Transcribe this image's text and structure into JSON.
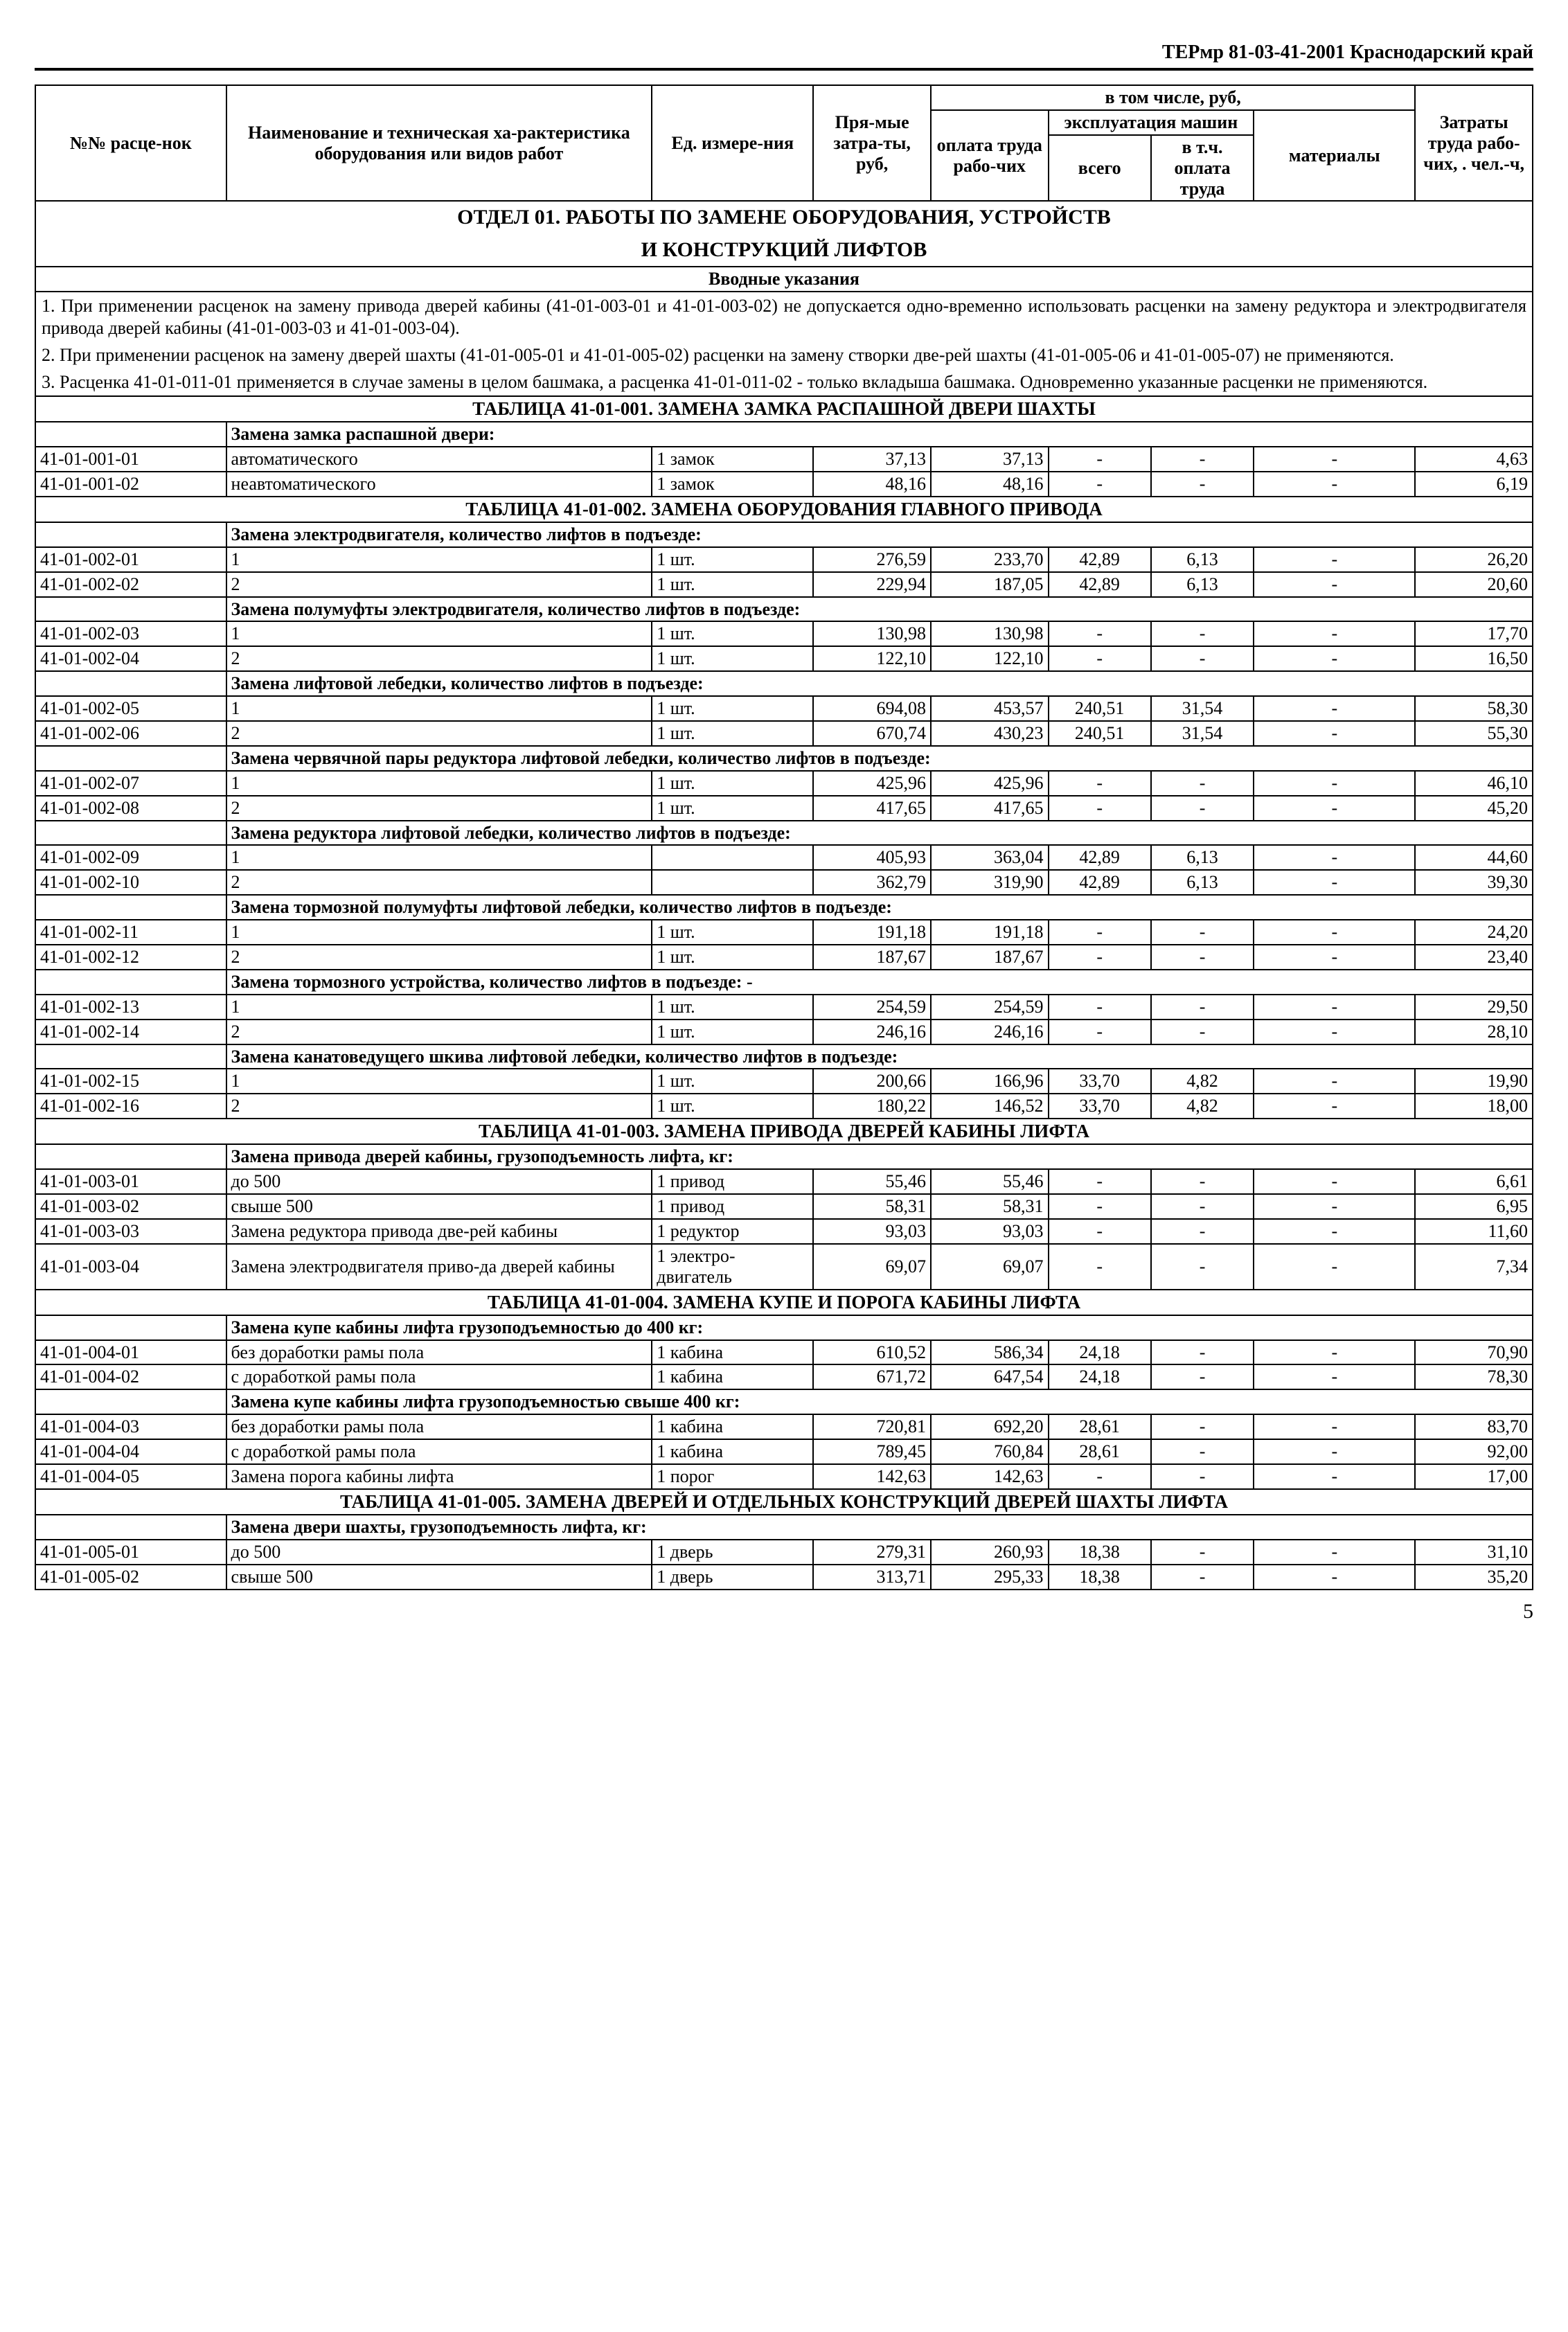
{
  "doc_header": "ТЕРмр 81-03-41-2001   Краснодарский край",
  "cols": {
    "c1": "№№ расце-нок",
    "c2": "Наименование и техническая ха-рактеристика оборудования или видов работ",
    "c3": "Ед. измере-ния",
    "c4": "Пря-мые затра-ты, руб,",
    "c5": "оплата труда рабо-чих",
    "c6_top": "в том числе, руб,",
    "c6a": "эксплуатация машин",
    "c6a1": "всего",
    "c6a2": "в т.ч. оплата труда",
    "c7": "материалы",
    "c8": "Затраты труда рабо-чих, . чел.-ч,"
  },
  "section_title_1": "ОТДЕЛ 01. РАБОТЫ ПО ЗАМЕНЕ ОБОРУДОВАНИЯ, УСТРОЙСТВ",
  "section_title_2": "И КОНСТРУКЦИЙ ЛИФТОВ",
  "intro_title": "Вводные указания",
  "intro_p1": "1. При применении расценок на замену привода дверей кабины (41-01-003-01 и 41-01-003-02) не допускается одно-временно использовать расценки на замену редуктора и электродвигателя привода дверей кабины (41-01-003-03 и 41-01-003-04).",
  "intro_p2": "2. При применении расценок на замену дверей шахты (41-01-005-01 и 41-01-005-02) расценки на замену створки две-рей шахты (41-01-005-06 и 41-01-005-07) не применяются.",
  "intro_p3": "3. Расценка 41-01-011-01 применяется в случае замены в целом башмака, а расценка 41-01-011-02 - только вкладыша башмака. Одновременно указанные расценки не применяются.",
  "t001_title": "ТАБЛИЦА 41-01-001. ЗАМЕНА ЗАМКА РАСПАШНОЙ ДВЕРИ ШАХТЫ",
  "t001_group": "Замена замка распашной двери:",
  "t001": [
    {
      "code": "41-01-001-01",
      "name": "автоматического",
      "unit": "1 замок",
      "v": [
        "37,13",
        "37,13",
        "-",
        "-",
        "-",
        "4,63"
      ]
    },
    {
      "code": "41-01-001-02",
      "name": "неавтоматического",
      "unit": "1 замок",
      "v": [
        "48,16",
        "48,16",
        "-",
        "-",
        "-",
        "6,19"
      ]
    }
  ],
  "t002_title": "ТАБЛИЦА 41-01-002. ЗАМЕНА ОБОРУДОВАНИЯ ГЛАВНОГО ПРИВОДА",
  "t002_g1": "Замена электродвигателя, количество лифтов в подъезде:",
  "t002_r1": [
    {
      "code": "41-01-002-01",
      "name": "1",
      "unit": "1 шт.",
      "v": [
        "276,59",
        "233,70",
        "42,89",
        "6,13",
        "-",
        "26,20"
      ]
    },
    {
      "code": "41-01-002-02",
      "name": "2",
      "unit": "1 шт.",
      "v": [
        "229,94",
        "187,05",
        "42,89",
        "6,13",
        "-",
        "20,60"
      ]
    }
  ],
  "t002_g2": "Замена полумуфты электродвигателя, количество лифтов в подъезде:",
  "t002_r2": [
    {
      "code": "41-01-002-03",
      "name": "1",
      "unit": "1 шт.",
      "v": [
        "130,98",
        "130,98",
        "-",
        "-",
        "-",
        "17,70"
      ]
    },
    {
      "code": "41-01-002-04",
      "name": "2",
      "unit": "1 шт.",
      "v": [
        "122,10",
        "122,10",
        "-",
        "-",
        "-",
        "16,50"
      ]
    }
  ],
  "t002_g3": "Замена лифтовой лебедки, количество лифтов в подъезде:",
  "t002_r3": [
    {
      "code": "41-01-002-05",
      "name": "1",
      "unit": "1 шт.",
      "v": [
        "694,08",
        "453,57",
        "240,51",
        "31,54",
        "-",
        "58,30"
      ]
    },
    {
      "code": "41-01-002-06",
      "name": "2",
      "unit": "1 шт.",
      "v": [
        "670,74",
        "430,23",
        "240,51",
        "31,54",
        "-",
        "55,30"
      ]
    }
  ],
  "t002_g4": "Замена червячной пары редуктора лифтовой лебедки, количество лифтов в подъезде:",
  "t002_r4": [
    {
      "code": "41-01-002-07",
      "name": "1",
      "unit": "1 шт.",
      "v": [
        "425,96",
        "425,96",
        "-",
        "-",
        "-",
        "46,10"
      ]
    },
    {
      "code": "41-01-002-08",
      "name": "2",
      "unit": "1 шт.",
      "v": [
        "417,65",
        "417,65",
        "-",
        "-",
        "-",
        "45,20"
      ]
    }
  ],
  "t002_g5": "Замена редуктора лифтовой лебедки, количество лифтов в подъезде:",
  "t002_r5": [
    {
      "code": "41-01-002-09",
      "name": "1",
      "unit": "",
      "v": [
        "405,93",
        "363,04",
        "42,89",
        "6,13",
        "-",
        "44,60"
      ]
    },
    {
      "code": "41-01-002-10",
      "name": "2",
      "unit": "",
      "v": [
        "362,79",
        "319,90",
        "42,89",
        "6,13",
        "-",
        "39,30"
      ]
    }
  ],
  "t002_g6": "Замена тормозной полумуфты лифтовой лебедки, количество лифтов в подъезде:",
  "t002_r6": [
    {
      "code": "41-01-002-11",
      "name": "1",
      "unit": "1 шт.",
      "v": [
        "191,18",
        "191,18",
        "-",
        "-",
        "-",
        "24,20"
      ]
    },
    {
      "code": "41-01-002-12",
      "name": "2",
      "unit": "1 шт.",
      "v": [
        "187,67",
        "187,67",
        "-",
        "-",
        "-",
        "23,40"
      ]
    }
  ],
  "t002_g7": "Замена тормозного устройства, количество лифтов в подъезде: -",
  "t002_r7": [
    {
      "code": "41-01-002-13",
      "name": "1",
      "unit": "1 шт.",
      "v": [
        "254,59",
        "254,59",
        "-",
        "-",
        "-",
        "29,50"
      ]
    },
    {
      "code": "41-01-002-14",
      "name": "2",
      "unit": "1 шт.",
      "v": [
        "246,16",
        "246,16",
        "-",
        "-",
        "-",
        "28,10"
      ]
    }
  ],
  "t002_g8": "Замена канатоведущего шкива лифтовой лебедки, количество лифтов в подъезде:",
  "t002_r8": [
    {
      "code": "41-01-002-15",
      "name": "1",
      "unit": "1 шт.",
      "v": [
        "200,66",
        "166,96",
        "33,70",
        "4,82",
        "-",
        "19,90"
      ]
    },
    {
      "code": "41-01-002-16",
      "name": "2",
      "unit": "1 шт.",
      "v": [
        "180,22",
        "146,52",
        "33,70",
        "4,82",
        "-",
        "18,00"
      ]
    }
  ],
  "t003_title": "ТАБЛИЦА 41-01-003. ЗАМЕНА ПРИВОДА ДВЕРЕЙ КАБИНЫ ЛИФТА",
  "t003_g1": "Замена привода дверей кабины, грузоподъемность лифта, кг:",
  "t003_r1": [
    {
      "code": "41-01-003-01",
      "name": "до 500",
      "unit": "1 привод",
      "v": [
        "55,46",
        "55,46",
        "-",
        "-",
        "-",
        "6,61"
      ]
    },
    {
      "code": "41-01-003-02",
      "name": "свыше 500",
      "unit": "1 привод",
      "v": [
        "58,31",
        "58,31",
        "-",
        "-",
        "-",
        "6,95"
      ]
    }
  ],
  "t003_r2": [
    {
      "code": "41-01-003-03",
      "name": "Замена редуктора привода две-рей кабины",
      "unit": "1 редуктор",
      "v": [
        "93,03",
        "93,03",
        "-",
        "-",
        "-",
        "11,60"
      ]
    },
    {
      "code": "41-01-003-04",
      "name": "Замена электродвигателя приво-да дверей кабины",
      "unit": "1 электро-двигатель",
      "v": [
        "69,07",
        "69,07",
        "-",
        "-",
        "-",
        "7,34"
      ]
    }
  ],
  "t004_title": "ТАБЛИЦА 41-01-004. ЗАМЕНА КУПЕ И ПОРОГА КАБИНЫ ЛИФТА",
  "t004_g1": "Замена купе кабины лифта грузоподъемностью до 400 кг:",
  "t004_r1": [
    {
      "code": "41-01-004-01",
      "name": "без доработки рамы пола",
      "unit": "1 кабина",
      "v": [
        "610,52",
        "586,34",
        "24,18",
        "-",
        "-",
        "70,90"
      ]
    },
    {
      "code": "41-01-004-02",
      "name": "с доработкой рамы пола",
      "unit": "1 кабина",
      "v": [
        "671,72",
        "647,54",
        "24,18",
        "-",
        "-",
        "78,30"
      ]
    }
  ],
  "t004_g2": "Замена купе кабины лифта грузоподъемностью свыше 400 кг:",
  "t004_r2": [
    {
      "code": "41-01-004-03",
      "name": "без доработки рамы пола",
      "unit": "1 кабина",
      "v": [
        "720,81",
        "692,20",
        "28,61",
        "-",
        "-",
        "83,70"
      ]
    },
    {
      "code": "41-01-004-04",
      "name": "с доработкой рамы пола",
      "unit": "1 кабина",
      "v": [
        "789,45",
        "760,84",
        "28,61",
        "-",
        "-",
        "92,00"
      ]
    },
    {
      "code": "41-01-004-05",
      "name": "Замена порога кабины лифта",
      "unit": "1 порог",
      "v": [
        "142,63",
        "142,63",
        "-",
        "-",
        "-",
        "17,00"
      ]
    }
  ],
  "t005_title": "ТАБЛИЦА 41-01-005. ЗАМЕНА ДВЕРЕЙ И ОТДЕЛЬНЫХ КОНСТРУКЦИЙ ДВЕРЕЙ ШАХТЫ ЛИФТА",
  "t005_g1": "Замена двери шахты, грузоподъемность лифта, кг:",
  "t005_r1": [
    {
      "code": "41-01-005-01",
      "name": "до 500",
      "unit": "1 дверь",
      "v": [
        "279,31",
        "260,93",
        "18,38",
        "-",
        "-",
        "31,10"
      ]
    },
    {
      "code": "41-01-005-02",
      "name": "свыше 500",
      "unit": "1 дверь",
      "v": [
        "313,71",
        "295,33",
        "18,38",
        "-",
        "-",
        "35,20"
      ]
    }
  ],
  "page_number": "5",
  "colwidths": [
    "260",
    "580",
    "220",
    "160",
    "160",
    "140",
    "140",
    "220",
    "160"
  ]
}
